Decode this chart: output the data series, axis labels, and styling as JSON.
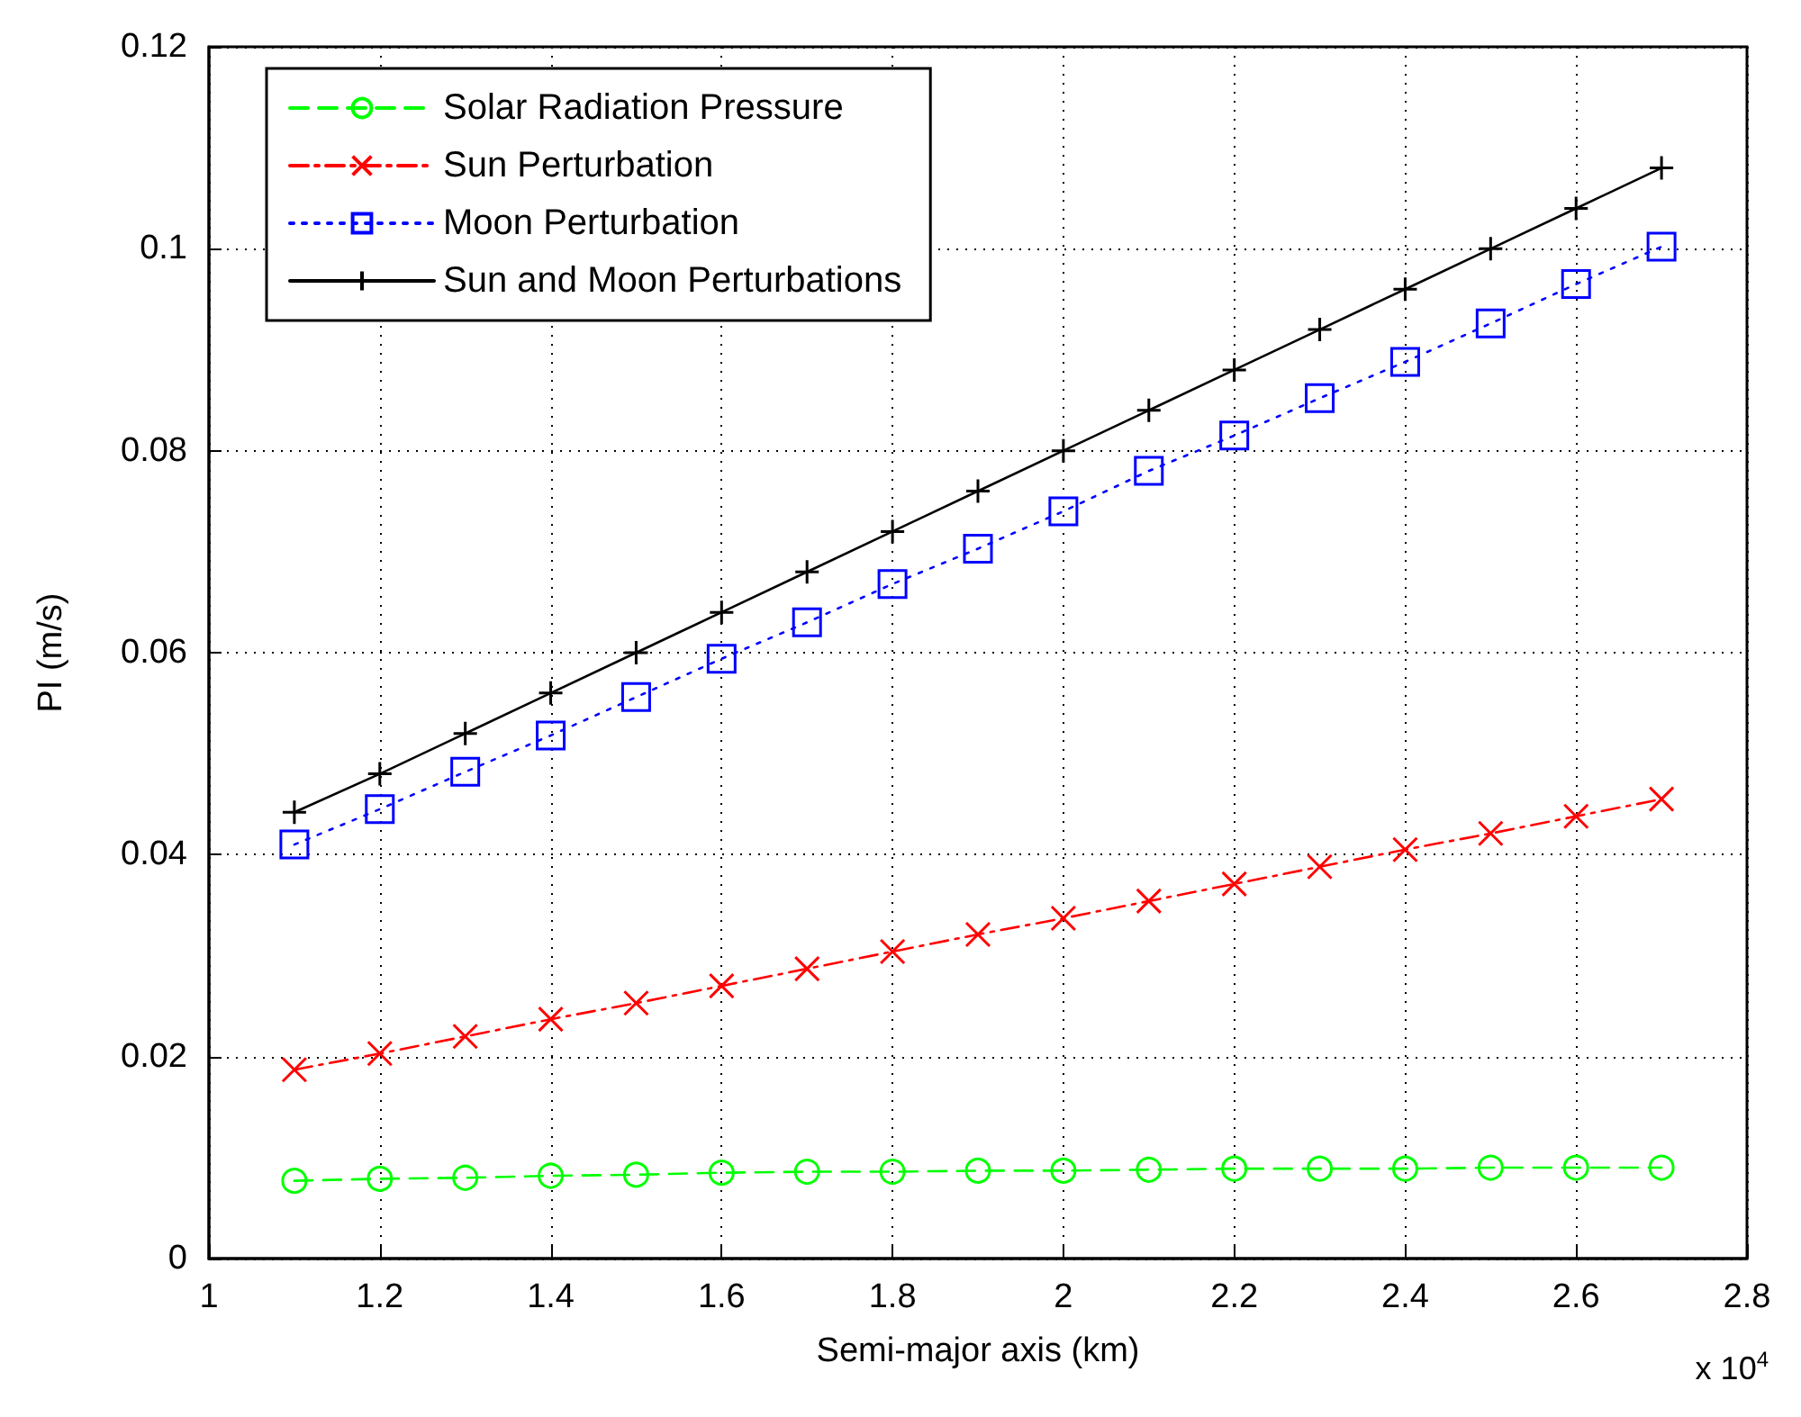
{
  "chart_data": {
    "type": "line",
    "xlabel": "Semi-major axis (km)",
    "ylabel": "PI (m/s)",
    "x": [
      1.1,
      1.2,
      1.3,
      1.4,
      1.5,
      1.6,
      1.7,
      1.8,
      1.9,
      2.0,
      2.1,
      2.2,
      2.3,
      2.4,
      2.5,
      2.6,
      2.7
    ],
    "series": [
      {
        "name": "Solar Radiation Pressure",
        "color": "#00ff00",
        "marker": "circle",
        "line_style": "dashed",
        "values": [
          0.0077,
          0.0079,
          0.008,
          0.0082,
          0.0083,
          0.0085,
          0.0086,
          0.0086,
          0.0087,
          0.0087,
          0.0088,
          0.0089,
          0.0089,
          0.0089,
          0.009,
          0.009,
          0.009
        ]
      },
      {
        "name": "Sun Perturbation",
        "color": "#ff0000",
        "marker": "cross",
        "line_style": "dashdot",
        "values": [
          0.0187,
          0.0203,
          0.022,
          0.0237,
          0.0253,
          0.027,
          0.0287,
          0.0304,
          0.0321,
          0.0337,
          0.0354,
          0.0371,
          0.0388,
          0.0405,
          0.0421,
          0.0438,
          0.0455
        ]
      },
      {
        "name": "Moon Perturbation",
        "color": "#0000ff",
        "marker": "square",
        "line_style": "dotted",
        "values": [
          0.041,
          0.0445,
          0.0482,
          0.0518,
          0.0556,
          0.0594,
          0.063,
          0.0668,
          0.0703,
          0.074,
          0.078,
          0.0815,
          0.0852,
          0.0888,
          0.0926,
          0.0965,
          0.1002
        ]
      },
      {
        "name": "Sun and Moon Perturbations",
        "color": "#000000",
        "marker": "plus",
        "line_style": "solid",
        "values": [
          0.0442,
          0.048,
          0.052,
          0.056,
          0.06,
          0.064,
          0.068,
          0.072,
          0.076,
          0.08,
          0.084,
          0.088,
          0.092,
          0.096,
          0.1,
          0.104,
          0.108
        ]
      }
    ],
    "xlim": [
      1,
      2.8
    ],
    "xticks": [
      1,
      1.2,
      1.4,
      1.6,
      1.8,
      2,
      2.2,
      2.4,
      2.6,
      2.8
    ],
    "ylim": [
      0,
      0.12
    ],
    "yticks": [
      0,
      0.02,
      0.04,
      0.06,
      0.08,
      0.1,
      0.12
    ],
    "grid": true,
    "legend": "top left",
    "annotations": [
      "x 10$^{4}$"
    ]
  }
}
